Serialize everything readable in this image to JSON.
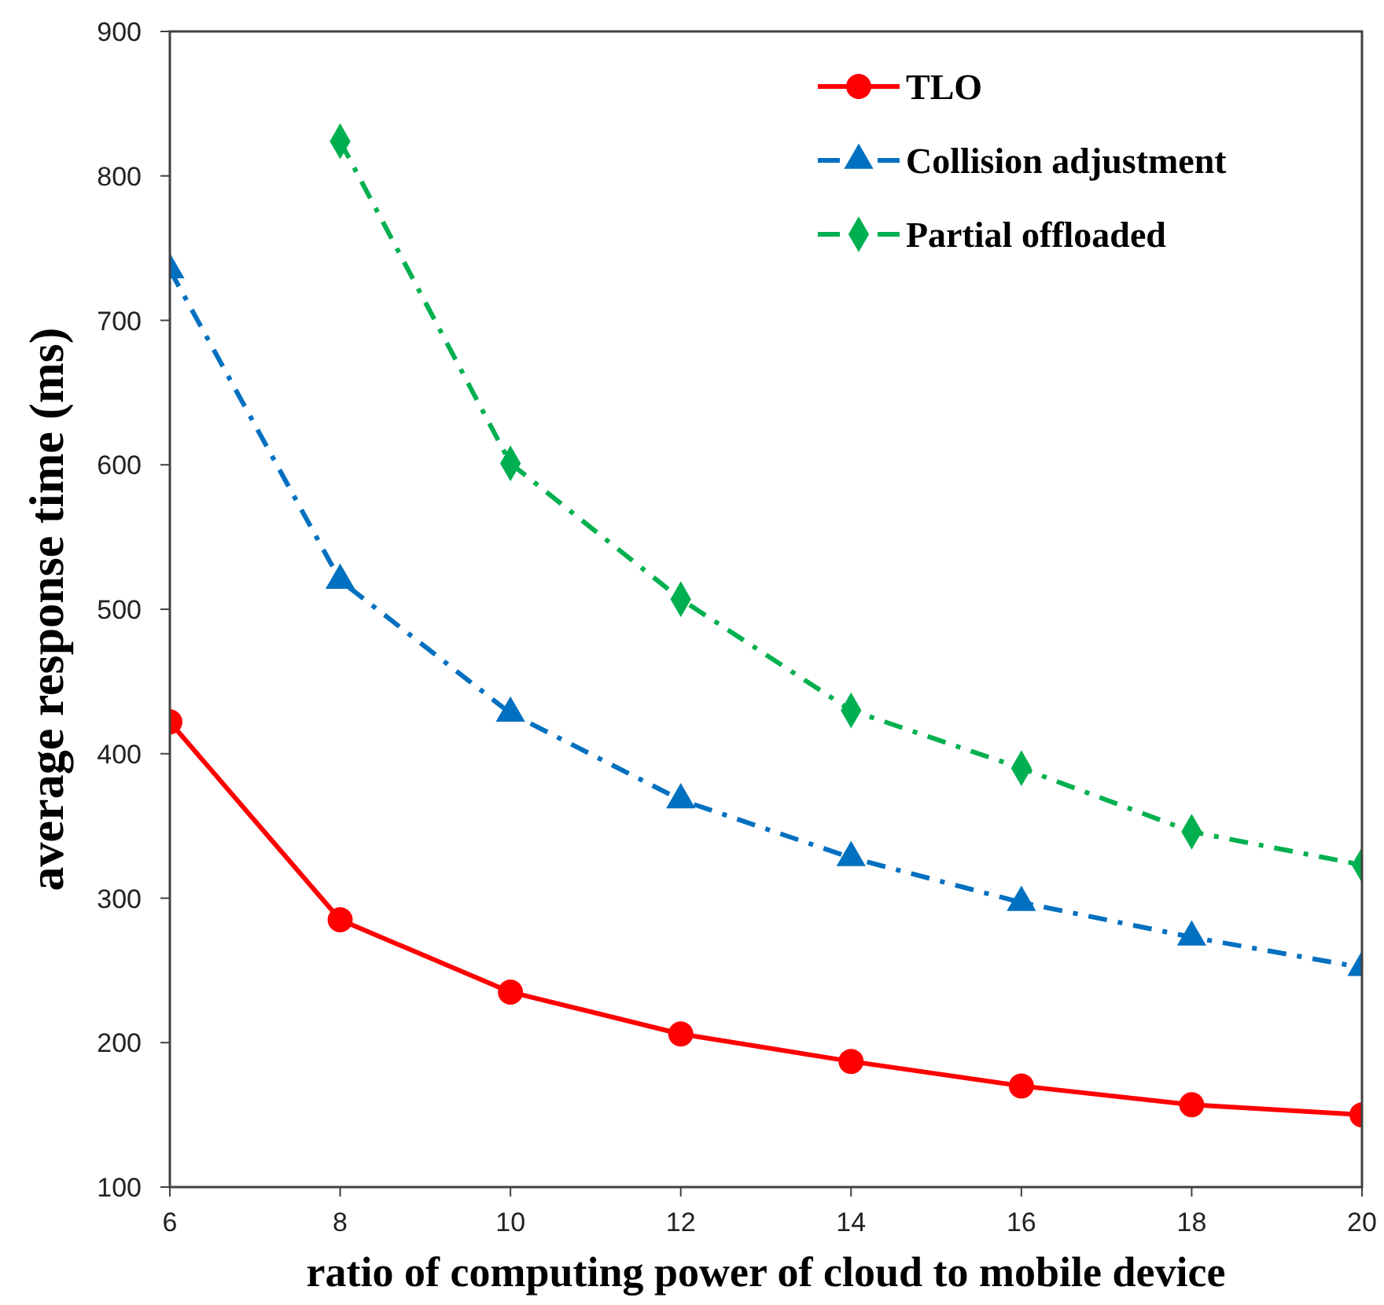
{
  "chart_data": {
    "type": "line",
    "xlabel": "ratio of computing power of cloud to mobile device",
    "ylabel": "average response time (ms)",
    "x": [
      6,
      8,
      10,
      12,
      14,
      16,
      18,
      20
    ],
    "xlim": [
      6,
      20
    ],
    "xticks": [
      6,
      8,
      10,
      12,
      14,
      16,
      18,
      20
    ],
    "ylim": [
      100,
      900
    ],
    "yticks": [
      100,
      200,
      300,
      400,
      500,
      600,
      700,
      800,
      900
    ],
    "grid": false,
    "legend": "top right",
    "series": [
      {
        "name": "TLO",
        "color": "#ff0000",
        "marker": "circle",
        "line_style": "solid",
        "values": [
          422,
          285,
          235,
          206,
          187,
          170,
          157,
          150
        ]
      },
      {
        "name": "Collision adjustment",
        "color": "#0070c0",
        "marker": "triangle",
        "line_style": "dashed",
        "values": [
          735,
          520,
          428,
          368,
          328,
          297,
          273,
          252
        ]
      },
      {
        "name": "Partial offloaded",
        "color": "#00b050",
        "marker": "diamond",
        "line_style": "dashed",
        "values": [
          null,
          824,
          601,
          507,
          430,
          390,
          346,
          323
        ]
      }
    ]
  }
}
